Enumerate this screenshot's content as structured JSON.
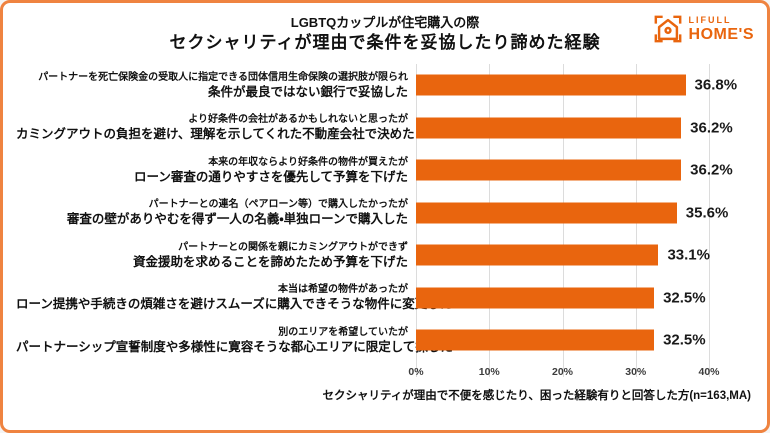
{
  "page": {
    "background": "#ffffff",
    "border_color": "#ef8340"
  },
  "header": {
    "title_line1": "LGBTQカップルが住宅購入の際",
    "title_line2": "セクシャリティが理由で条件を妥協したり諦めた経験"
  },
  "logo": {
    "brand_top": "LIFULL",
    "brand_bottom": "HOME'S",
    "color": "#e9650e",
    "icon": "house-in-brackets-icon"
  },
  "chart_data": {
    "type": "bar",
    "orientation": "horizontal",
    "title": "LGBTQカップルが住宅購入の際 セクシャリティが理由で条件を妥協したり諦めた経験",
    "bar_color": "#e9650e",
    "grid": true,
    "gridline_color": "#dcdcdc",
    "xlim": [
      0,
      40
    ],
    "x_ticks": [
      "0%",
      "10%",
      "20%",
      "30%",
      "40%"
    ],
    "categories": [
      {
        "sub": "パートナーを死亡保険金の受取人に指定できる団体信用生命保険の選択肢が限られ",
        "main": "条件が最良ではない銀行で妥協した"
      },
      {
        "sub": "より好条件の会社があるかもしれないと思ったが",
        "main": "カミングアウトの負担を避け、理解を示してくれた不動産会社で決めた"
      },
      {
        "sub": "本来の年収ならより好条件の物件が買えたが",
        "main": "ローン審査の通りやすさを優先して予算を下げた"
      },
      {
        "sub": "パートナーとの連名（ペアローン等）で購入したかったが",
        "main": "審査の壁がありやむを得ず一人の名義・単独ローンで購入した"
      },
      {
        "sub": "パートナーとの関係を親にカミングアウトができず",
        "main": "資金援助を求めることを諦めたため予算を下げた"
      },
      {
        "sub": "本当は希望の物件があったが",
        "main": "ローン提携や手続きの煩雑さを避けスムーズに購入できそうな物件に変更した"
      },
      {
        "sub": "別のエリアを希望していたが",
        "main": "パートナーシップ宣誓制度や多様性に寛容そうな都心エリアに限定して探した"
      }
    ],
    "values": [
      36.8,
      36.2,
      36.2,
      35.6,
      33.1,
      32.5,
      32.5
    ],
    "value_labels": [
      "36.8%",
      "36.2%",
      "36.2%",
      "35.6%",
      "33.1%",
      "32.5%",
      "32.5%"
    ]
  },
  "footer": {
    "note": "セクシャリティが理由で不便を感じたり、困った経験有りと回答した方(n=163,MA)"
  }
}
